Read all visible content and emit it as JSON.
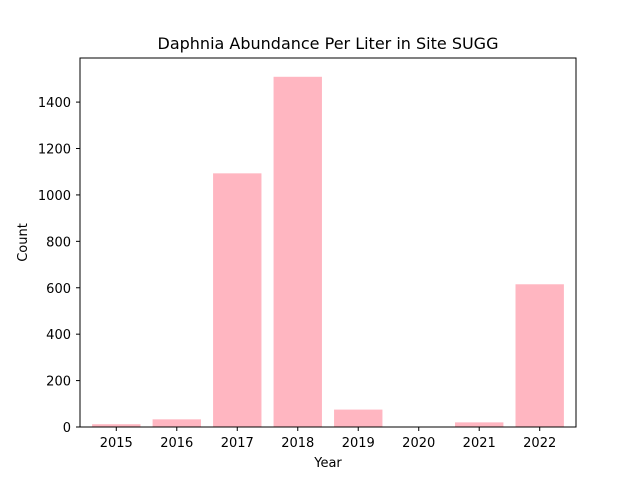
{
  "chart_data": {
    "type": "bar",
    "title": "Daphnia Abundance Per Liter in Site SUGG",
    "xlabel": "Year",
    "ylabel": "Count",
    "categories": [
      "2015",
      "2016",
      "2017",
      "2018",
      "2019",
      "2020",
      "2021",
      "2022"
    ],
    "values": [
      12,
      33,
      1093,
      1509,
      75,
      0,
      20,
      615
    ],
    "ylim": [
      0,
      1590
    ],
    "yticks": [
      0,
      200,
      400,
      600,
      800,
      1000,
      1200,
      1400
    ],
    "bar_color": "#ffb6c1",
    "grid": false,
    "legend": "none"
  }
}
